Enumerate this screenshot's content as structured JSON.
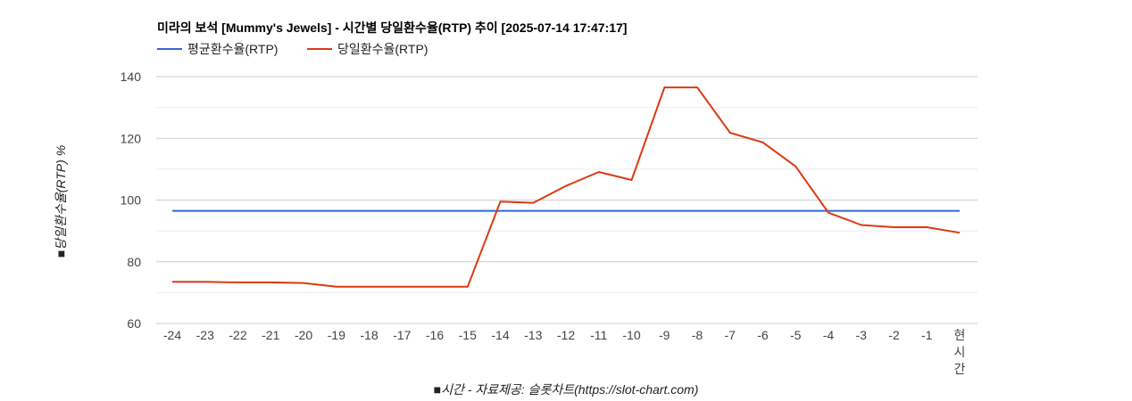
{
  "chart_data": {
    "type": "line",
    "title": "미라의 보석 [Mummy's Jewels] - 시간별 당일환수율(RTP) 추이 [2025-07-14 17:47:17]",
    "xlabel": "■시간 - 자료제공: 슬롯차트(https://slot-chart.com)",
    "ylabel": "■당일환수율(RTP) %",
    "ylim": [
      60,
      140
    ],
    "yticks": [
      "60",
      "80",
      "100",
      "120",
      "140"
    ],
    "categories": [
      "-24",
      "-23",
      "-22",
      "-21",
      "-20",
      "-19",
      "-18",
      "-17",
      "-16",
      "-15",
      "-14",
      "-13",
      "-12",
      "-11",
      "-10",
      "-9",
      "-8",
      "-7",
      "-6",
      "-5",
      "-4",
      "-3",
      "-2",
      "-1",
      "현시간"
    ],
    "legend_position": "top-left",
    "grid": true,
    "series": [
      {
        "name": "평균환수율(RTP)",
        "color": "#3366cc",
        "values": [
          96.5,
          96.5,
          96.5,
          96.5,
          96.5,
          96.5,
          96.5,
          96.5,
          96.5,
          96.5,
          96.5,
          96.5,
          96.5,
          96.5,
          96.5,
          96.5,
          96.5,
          96.5,
          96.5,
          96.5,
          96.5,
          96.5,
          96.5,
          96.5,
          96.5
        ]
      },
      {
        "name": "당일환수율(RTP)",
        "color": "#dc3912",
        "values": [
          73.5,
          73.5,
          73.3,
          73.3,
          73.1,
          71.9,
          71.9,
          71.9,
          71.9,
          71.9,
          99.5,
          99.1,
          104.6,
          109.1,
          106.5,
          136.5,
          136.5,
          121.8,
          118.7,
          110.9,
          95.9,
          91.9,
          91.2,
          91.2,
          89.4
        ]
      }
    ]
  }
}
